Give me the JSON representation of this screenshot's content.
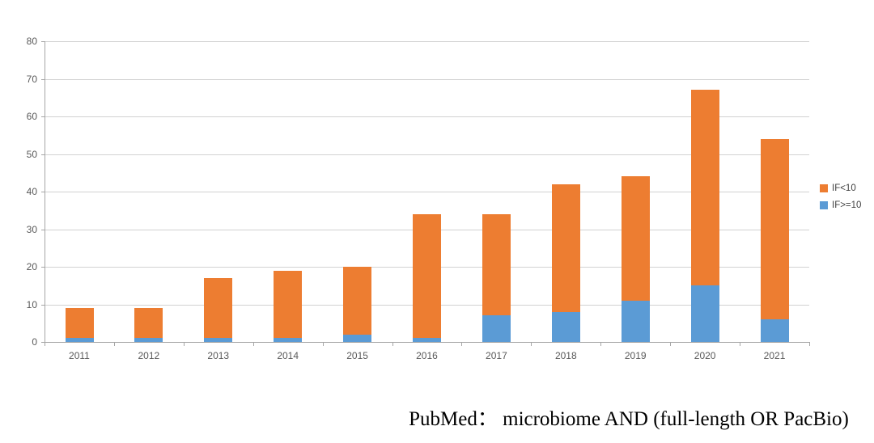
{
  "chart_data": {
    "type": "bar",
    "stacked": true,
    "categories": [
      "2011",
      "2012",
      "2013",
      "2014",
      "2015",
      "2016",
      "2017",
      "2018",
      "2019",
      "2020",
      "2021"
    ],
    "series": [
      {
        "name": "IF>=10",
        "color": "#5B9BD5",
        "values": [
          1,
          1,
          1,
          1,
          2,
          1,
          7,
          8,
          11,
          15,
          6
        ]
      },
      {
        "name": "IF<10",
        "color": "#ED7D31",
        "values": [
          8,
          8,
          16,
          18,
          18,
          33,
          27,
          34,
          33,
          52,
          48
        ]
      }
    ],
    "stack_totals": [
      9,
      9,
      17,
      19,
      20,
      34,
      34,
      42,
      44,
      67,
      54
    ],
    "title": "",
    "xlabel": "",
    "ylabel": "",
    "ylim": [
      0,
      80
    ],
    "ytick_step": 10,
    "yticks": [
      0,
      10,
      20,
      30,
      40,
      50,
      60,
      70,
      80
    ],
    "grid": true,
    "legend_position": "right"
  },
  "legend": {
    "items": [
      {
        "label": "IF<10",
        "color": "#ED7D31"
      },
      {
        "label": "IF>=10",
        "color": "#5B9BD5"
      }
    ]
  },
  "caption": {
    "text": "PubMed： microbiome AND (full-length OR PacBio)"
  },
  "colors": {
    "background": "#FFFFFF",
    "axis": "#A6A6A6",
    "gridline": "#D2D2D2",
    "tick_label": "#595959",
    "legend_text": "#404040"
  }
}
